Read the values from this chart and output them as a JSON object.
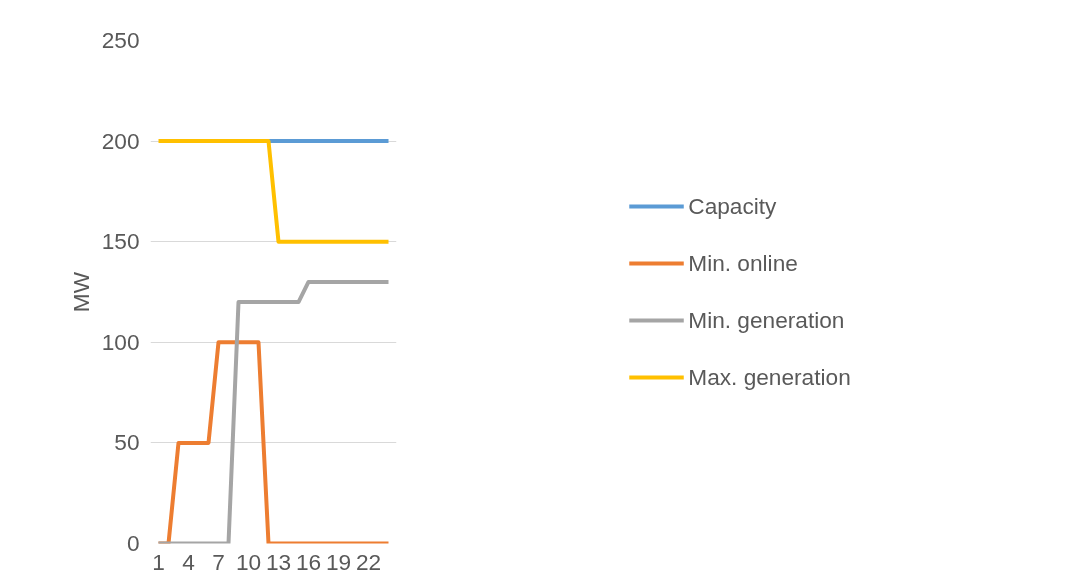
{
  "chart_data": {
    "type": "line",
    "ylabel": "MW",
    "categories": [
      "1",
      null,
      null,
      "4",
      null,
      null,
      "7",
      null,
      null,
      "10",
      null,
      null,
      "13",
      null,
      null,
      "16",
      null,
      null,
      "19",
      null,
      null,
      "22",
      null,
      null
    ],
    "ylim": [
      0,
      250
    ],
    "yticks": [
      0,
      50,
      100,
      150,
      200,
      250
    ],
    "grid": "y",
    "legend": "right",
    "line_style": "solid",
    "marker": "none",
    "series": [
      {
        "name": "Capacity",
        "color": "#5b9bd5",
        "values": [
          null,
          null,
          null,
          null,
          null,
          null,
          null,
          null,
          null,
          null,
          null,
          200,
          200,
          200,
          200,
          200,
          200,
          200,
          200,
          200,
          200,
          200,
          200,
          200
        ]
      },
      {
        "name": "Min. online",
        "color": "#ed7d31",
        "values": [
          0,
          0,
          50,
          50,
          50,
          50,
          100,
          100,
          100,
          100,
          100,
          0,
          0,
          0,
          0,
          0,
          0,
          0,
          0,
          0,
          0,
          0,
          0,
          0
        ]
      },
      {
        "name": "Min. generation",
        "color": "#a5a5a5",
        "values": [
          0,
          0,
          0,
          0,
          0,
          0,
          0,
          0,
          120,
          120,
          120,
          120,
          120,
          120,
          120,
          130,
          130,
          130,
          130,
          130,
          130,
          130,
          130,
          130
        ]
      },
      {
        "name": "Max. generation",
        "color": "#ffc000",
        "values": [
          200,
          200,
          200,
          200,
          200,
          200,
          200,
          200,
          200,
          200,
          200,
          200,
          150,
          150,
          150,
          150,
          150,
          150,
          150,
          150,
          150,
          150,
          150,
          150
        ]
      }
    ]
  }
}
